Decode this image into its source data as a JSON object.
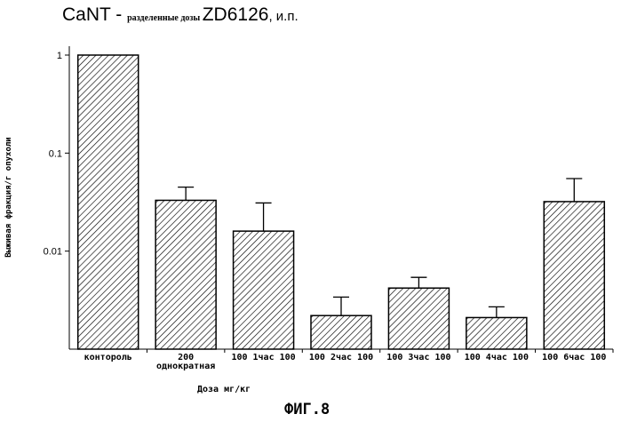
{
  "chart_data": {
    "type": "bar",
    "title_parts": [
      "CaNT - ",
      "разделенные дозы ",
      "ZD6126",
      ", и.п."
    ],
    "ylabel": "Выживая фракция/г опухоли",
    "xlabel": "Доза мг/кг",
    "figure_label": "ФИГ.8",
    "yscale": "log",
    "ylim": [
      0.001,
      1
    ],
    "yticks": [
      1,
      0.1,
      0.01
    ],
    "ytick_labels": [
      "1",
      "0.1",
      "0.01"
    ],
    "categories": [
      [
        "контороль"
      ],
      [
        "200",
        "однократная"
      ],
      [
        "100 1час 100"
      ],
      [
        "100 2час 100"
      ],
      [
        "100 3час 100"
      ],
      [
        "100 4час 100"
      ],
      [
        "100 6час 100"
      ]
    ],
    "values": [
      1.0,
      0.033,
      0.016,
      0.0022,
      0.0042,
      0.0021,
      0.032
    ],
    "error_upper": [
      1.0,
      0.045,
      0.031,
      0.0034,
      0.0054,
      0.0027,
      0.055
    ],
    "bar_fill": "diagonal-hatch",
    "color": "#000000",
    "grid": false
  }
}
